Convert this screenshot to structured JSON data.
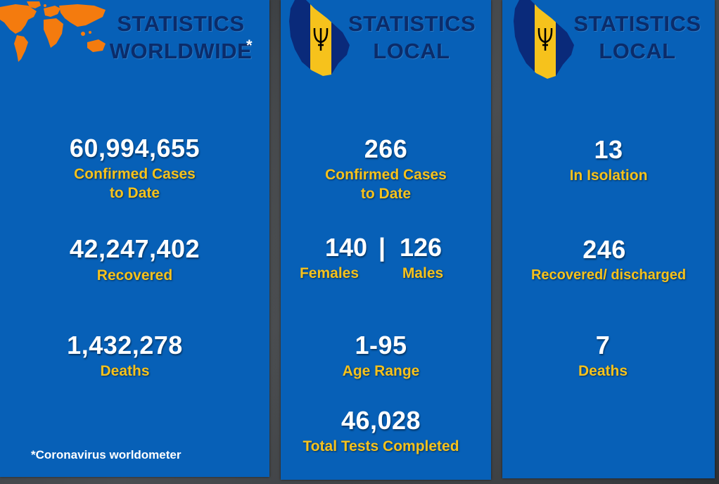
{
  "colors": {
    "panel_blue": "#0760b7",
    "label_gold": "#f6c21c",
    "title_navy": "#0b2c6a",
    "flag_gold": "#f6c21c",
    "map_orange": "#f47b0e"
  },
  "icons": {
    "world": "world-map-icon",
    "barbados": "barbados-flag-map-icon"
  },
  "worldwide": {
    "title_line1": "STATISTICS",
    "title_line2": "WORLDWIDE",
    "asterisk": "*",
    "confirmed": {
      "value": "60,994,655",
      "label_line1": "Confirmed Cases",
      "label_line2": "to Date"
    },
    "recovered": {
      "value": "42,247,402",
      "label": "Recovered"
    },
    "deaths": {
      "value": "1,432,278",
      "label": "Deaths"
    },
    "footnote": "*Coronavirus worldometer"
  },
  "local_1": {
    "title_line1": "STATISTICS",
    "title_line2": "LOCAL",
    "confirmed": {
      "value": "266",
      "label_line1": "Confirmed Cases",
      "label_line2": "to Date"
    },
    "females": {
      "value": "140",
      "label": "Females"
    },
    "separator": "|",
    "males": {
      "value": "126",
      "label": "Males"
    },
    "age_range": {
      "value": "1-95",
      "label": "Age Range"
    },
    "tests": {
      "value": "46,028",
      "label": "Total Tests Completed"
    }
  },
  "local_2": {
    "title_line1": "STATISTICS",
    "title_line2": "LOCAL",
    "isolation": {
      "value": "13",
      "label": "In Isolation"
    },
    "recovered": {
      "value": "246",
      "label": "Recovered/ discharged"
    },
    "deaths": {
      "value": "7",
      "label": "Deaths"
    }
  }
}
